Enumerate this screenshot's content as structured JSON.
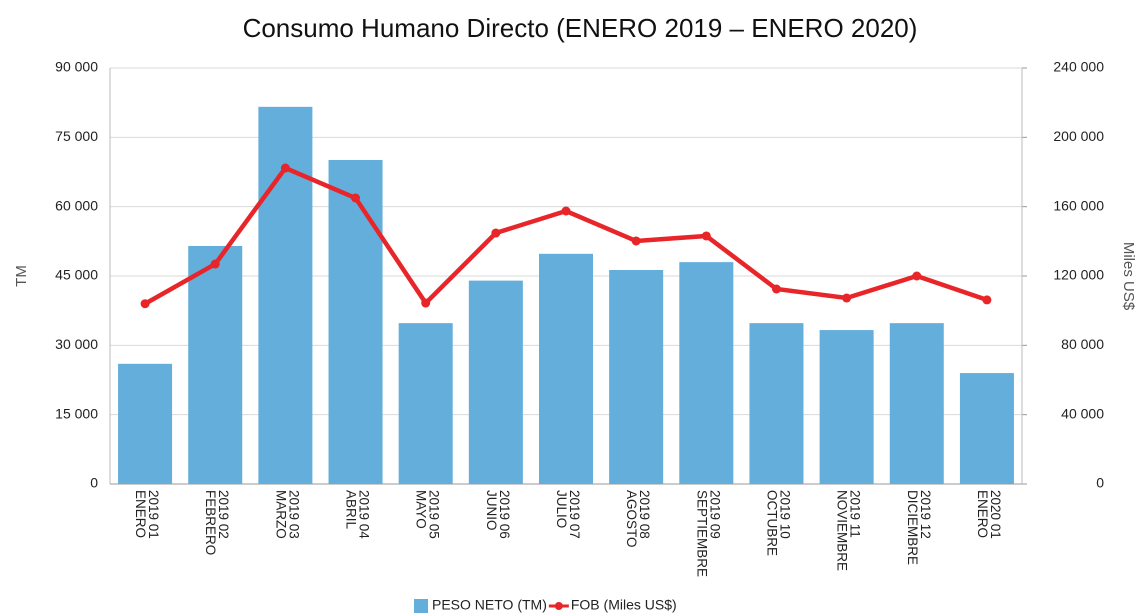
{
  "chart_data": {
    "type": "bar-line",
    "title": "Consumo Humano Directo (ENERO 2019 – ENERO 2020)",
    "y_label": "TM",
    "y2_label": "Miles US$",
    "categories": [
      [
        "2019 01",
        "ENERO"
      ],
      [
        "2019 02",
        "FEBRERO"
      ],
      [
        "2019 03",
        "MARZO"
      ],
      [
        "2019 04",
        "ABRIL"
      ],
      [
        "2019 05",
        "MAYO"
      ],
      [
        "2019 06",
        "JUNIO"
      ],
      [
        "2019 07",
        "JULIO"
      ],
      [
        "2019 08",
        "AGOSTO"
      ],
      [
        "2019 09",
        "SEPTIEMBRE"
      ],
      [
        "2019 10",
        "OCTUBRE"
      ],
      [
        "2019 11",
        "NOVIEMBRE"
      ],
      [
        "2019 12",
        "DICIEMBRE"
      ],
      [
        "2020 01",
        "ENERO"
      ]
    ],
    "series": [
      {
        "name": "PESO NETO (TM)",
        "type": "bar",
        "color": "#63aedb",
        "values": [
          26000,
          51500,
          81600,
          70100,
          34800,
          44000,
          49800,
          46300,
          48000,
          34800,
          33300,
          34800,
          24000
        ]
      },
      {
        "name": "FOB (Miles US$)",
        "type": "line",
        "axis": "y2",
        "color": "#e8262a",
        "values": [
          104000,
          126900,
          182300,
          165000,
          104400,
          144800,
          157500,
          140200,
          143100,
          112500,
          107300,
          120000,
          106200
        ]
      }
    ],
    "ylim": [
      0,
      90000
    ],
    "yticks": [
      0,
      {
        "value": 15000,
        "label": "15 000"
      },
      {
        "value": 30000,
        "label": "30 000"
      },
      {
        "value": 45000,
        "label": "45 000"
      },
      {
        "value": 60000,
        "label": "60 000"
      },
      {
        "value": 75000,
        "label": "75 000"
      },
      {
        "value": 90000,
        "label": "90 000"
      }
    ],
    "y2lim": [
      0,
      240000
    ],
    "y2ticks": [
      0,
      {
        "value": 40000,
        "label": "40 000"
      },
      {
        "value": 80000,
        "label": "80 000"
      },
      {
        "value": 120000,
        "label": "120 000"
      },
      {
        "value": 160000,
        "label": "160 000"
      },
      {
        "value": 200000,
        "label": "200 000"
      },
      {
        "value": 240000,
        "label": "240 000"
      }
    ],
    "grid": true
  }
}
